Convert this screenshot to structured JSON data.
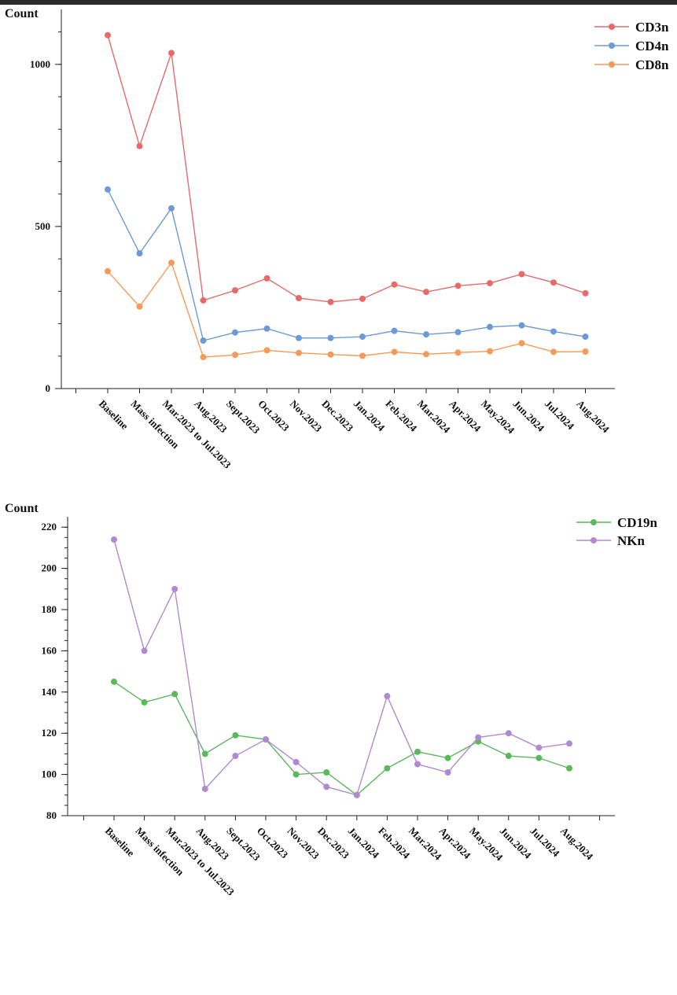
{
  "chart_data": [
    {
      "type": "line",
      "ylabel": "Count",
      "ylim": [
        0,
        1150
      ],
      "yticks": [
        0,
        500,
        1000
      ],
      "legend_position": "top-right",
      "categories": [
        "Baseline",
        "Mass infection",
        "Mar.2023 to Jul.2023",
        "Aug.2023",
        "Sept.2023",
        "Oct.2023",
        "Nov.2023",
        "Dec.2023",
        "Jan.2024",
        "Feb.2024",
        "Mar.2024",
        "Apr.2024",
        "May.2024",
        "Jun.2024",
        "Jul.2024",
        "Aug.2024"
      ],
      "series": [
        {
          "name": "CD3n",
          "color": "#e66a6a",
          "values": [
            1090,
            748,
            1035,
            272,
            303,
            340,
            279,
            267,
            277,
            321,
            298,
            317,
            325,
            353,
            327,
            294
          ]
        },
        {
          "name": "CD4n",
          "color": "#6b9bd6",
          "values": [
            614,
            417,
            556,
            148,
            173,
            185,
            156,
            156,
            160,
            178,
            167,
            174,
            190,
            195,
            176,
            160
          ]
        },
        {
          "name": "CD8n",
          "color": "#f59a5a",
          "values": [
            362,
            253,
            388,
            97,
            104,
            118,
            110,
            105,
            101,
            113,
            106,
            111,
            115,
            140,
            113,
            114
          ]
        }
      ]
    },
    {
      "type": "line",
      "ylabel": "Count",
      "ylim": [
        80,
        222
      ],
      "yticks": [
        80,
        100,
        120,
        140,
        160,
        180,
        200,
        220
      ],
      "legend_position": "top-right",
      "categories": [
        "Baseline",
        "Mass infection",
        "Mar.2023 to Jul.2023",
        "Aug.2023",
        "Sept.2023",
        "Oct.2023",
        "Nov.2023",
        "Dec.2023",
        "Jan.2024",
        "Feb.2024",
        "Mar.2024",
        "Apr.2024",
        "May.2024",
        "Jun.2024",
        "Jul.2024",
        "Aug.2024"
      ],
      "series": [
        {
          "name": "CD19n",
          "color": "#5cb85c",
          "values": [
            145,
            135,
            139,
            110,
            119,
            117,
            100,
            101,
            90,
            103,
            111,
            108,
            116,
            109,
            108,
            103
          ]
        },
        {
          "name": "NKn",
          "color": "#b08ad0",
          "values": [
            214,
            160,
            190,
            93,
            109,
            117,
            106,
            94,
            90,
            138,
            105,
            101,
            118,
            120,
            113,
            115
          ]
        }
      ]
    }
  ]
}
